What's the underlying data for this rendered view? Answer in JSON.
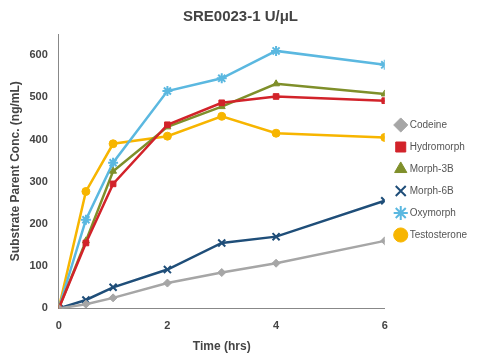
{
  "chart_data": {
    "type": "line",
    "title": "SRE0023-1 U/μL",
    "x_label": "Time (hrs)",
    "y_label": "Substrate Parent Conc. (ng/mL)",
    "x": [
      0,
      0.5,
      1,
      2,
      3,
      4,
      6
    ],
    "xlim": [
      0,
      6
    ],
    "xticks": [
      0,
      2,
      4,
      6
    ],
    "ylim": [
      0,
      650
    ],
    "yticks": [
      0,
      100,
      200,
      300,
      400,
      500,
      600
    ],
    "grid": false,
    "legend": "right",
    "series": [
      {
        "name": "Codeine",
        "color": "#a6a6a6",
        "marker": "diamond",
        "values": [
          0,
          10,
          25,
          60,
          85,
          107,
          160
        ]
      },
      {
        "name": "Hydromorph",
        "color": "#d2232a",
        "marker": "square",
        "values": [
          0,
          155,
          295,
          435,
          487,
          502,
          492
        ]
      },
      {
        "name": "Morph-3B",
        "color": "#7f8f2a",
        "marker": "triangle",
        "values": [
          0,
          160,
          325,
          430,
          478,
          532,
          508
        ]
      },
      {
        "name": "Morph-6B",
        "color": "#1f4e79",
        "marker": "x",
        "values": [
          0,
          20,
          50,
          92,
          155,
          170,
          255
        ]
      },
      {
        "name": "Oxymorph",
        "color": "#5bb8e0",
        "marker": "star",
        "values": [
          0,
          210,
          345,
          515,
          545,
          610,
          577
        ]
      },
      {
        "name": "Testosterone",
        "color": "#f7b500",
        "marker": "circle",
        "values": [
          0,
          277,
          390,
          408,
          455,
          415,
          405
        ]
      }
    ]
  }
}
